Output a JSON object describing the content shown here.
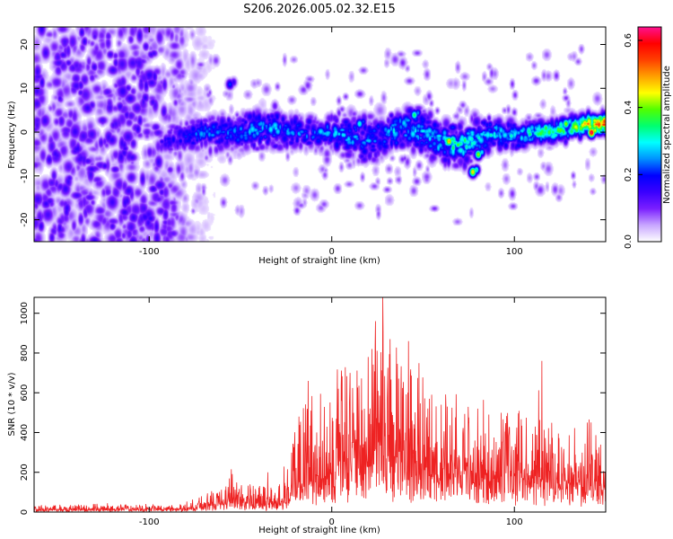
{
  "title": "S206.2026.005.02.32.E15",
  "chart_data": [
    {
      "type": "heatmap",
      "title": "S206.2026.005.02.32.E15",
      "xlabel": "Height of straight line (km)",
      "ylabel": "Frequency (Hz)",
      "xlim": [
        -163,
        150
      ],
      "ylim": [
        -25,
        24
      ],
      "xticks": [
        -100,
        0,
        100
      ],
      "xtick_labels": [
        "-100",
        "0",
        "100"
      ],
      "yticks": [
        20,
        10,
        0,
        -10,
        -20
      ],
      "ytick_labels": [
        "20",
        "10",
        "0",
        "-10",
        "-20"
      ],
      "colorbar": {
        "label": "Normalized spectral amplitude",
        "range": [
          0.0,
          0.64
        ],
        "ticks": [
          0.0,
          0.2,
          0.4,
          0.6
        ],
        "tick_labels": [
          "0.0",
          "0.2",
          "0.4",
          "0.6"
        ],
        "colors": [
          "#ffffff",
          "#c8a6ff",
          "#7a1fff",
          "#3a00ff",
          "#0000ff",
          "#0090ff",
          "#00ffff",
          "#00ff70",
          "#50ff00",
          "#ffff00",
          "#ffa000",
          "#ff4000",
          "#ff0000",
          "#ff1090"
        ]
      },
      "noise_region": {
        "x": [
          -163,
          -80
        ],
        "y": [
          -25,
          24
        ],
        "level": 0.12
      },
      "ridge": {
        "x": [
          -95,
          -80,
          -70,
          -60,
          -50,
          -40,
          -30,
          -20,
          -10,
          0,
          10,
          20,
          30,
          40,
          50,
          60,
          70,
          80,
          90,
          100,
          110,
          120,
          130,
          140,
          150
        ],
        "center_hz": [
          -2,
          -1,
          0,
          0,
          0,
          1,
          1,
          0,
          0,
          0,
          -1,
          -2,
          0,
          1,
          0,
          -2,
          -3,
          -1,
          0,
          -1,
          0,
          0,
          1,
          2,
          2
        ],
        "halfwidth_hz": [
          3,
          5,
          5,
          6,
          6,
          6,
          6,
          5,
          5,
          5,
          6,
          7,
          6,
          6,
          6,
          6,
          6,
          5,
          4,
          4,
          3,
          3,
          3,
          3,
          3
        ],
        "amplitude": [
          0.15,
          0.2,
          0.24,
          0.22,
          0.24,
          0.26,
          0.26,
          0.24,
          0.25,
          0.26,
          0.27,
          0.24,
          0.26,
          0.3,
          0.28,
          0.32,
          0.36,
          0.3,
          0.3,
          0.3,
          0.33,
          0.36,
          0.4,
          0.45,
          0.55
        ]
      },
      "hotspots": [
        {
          "x": -56,
          "y": 11,
          "amp": 0.22
        },
        {
          "x": 64,
          "y": -2,
          "amp": 0.5
        },
        {
          "x": 77,
          "y": -9,
          "amp": 0.48
        },
        {
          "x": 80,
          "y": -5,
          "amp": 0.42
        },
        {
          "x": 117,
          "y": 1,
          "amp": 0.38
        },
        {
          "x": 128,
          "y": 2,
          "amp": 0.42
        },
        {
          "x": 142,
          "y": 0,
          "amp": 0.64
        },
        {
          "x": 146,
          "y": 2,
          "amp": 0.5
        },
        {
          "x": 45,
          "y": 4,
          "amp": 0.36
        },
        {
          "x": 15,
          "y": 2,
          "amp": 0.32
        },
        {
          "x": 2,
          "y": 0,
          "amp": 0.3
        }
      ]
    },
    {
      "type": "line",
      "xlabel": "Height of straight line (km)",
      "ylabel": "SNR (10 * v/v)",
      "xlim": [
        -163,
        150
      ],
      "ylim": [
        0,
        1080
      ],
      "xticks": [
        -100,
        0,
        100
      ],
      "xtick_labels": [
        "-100",
        "0",
        "100"
      ],
      "yticks": [
        0,
        200,
        400,
        600,
        800,
        1000
      ],
      "ytick_labels": [
        "0",
        "200",
        "400",
        "600",
        "800",
        "1000"
      ],
      "line_color": "#ee2222",
      "series": [
        {
          "name": "SNR",
          "envelope": {
            "x": [
              -163,
              -120,
              -90,
              -80,
              -70,
              -60,
              -55,
              -50,
              -40,
              -35,
              -30,
              -25,
              -20,
              -15,
              -10,
              0,
              10,
              15,
              20,
              25,
              28,
              30,
              40,
              50,
              60,
              70,
              80,
              90,
              100,
              110,
              115,
              120,
              130,
              140,
              150
            ],
            "base": [
              10,
              10,
              12,
              12,
              20,
              40,
              55,
              40,
              35,
              30,
              40,
              60,
              90,
              110,
              130,
              160,
              190,
              200,
              220,
              240,
              250,
              240,
              220,
              200,
              190,
              180,
              170,
              160,
              150,
              150,
              150,
              140,
              130,
              120,
              110
            ],
            "peak": [
              40,
              45,
              40,
              55,
              90,
              150,
              210,
              140,
              160,
              200,
              130,
              300,
              500,
              620,
              660,
              700,
              800,
              720,
              810,
              960,
              1080,
              870,
              860,
              700,
              540,
              600,
              520,
              560,
              500,
              510,
              760,
              440,
              440,
              460,
              420
            ]
          },
          "peaks": [
            {
              "x": -55,
              "y": 215
            },
            {
              "x": -35,
              "y": 200
            },
            {
              "x": -18,
              "y": 480
            },
            {
              "x": -13,
              "y": 660
            },
            {
              "x": 10,
              "y": 700
            },
            {
              "x": 20,
              "y": 780
            },
            {
              "x": 22,
              "y": 820
            },
            {
              "x": 24,
              "y": 960
            },
            {
              "x": 28,
              "y": 1080
            },
            {
              "x": 32,
              "y": 870
            },
            {
              "x": 42,
              "y": 860
            },
            {
              "x": 60,
              "y": 540
            },
            {
              "x": 80,
              "y": 520
            },
            {
              "x": 115,
              "y": 760
            },
            {
              "x": 140,
              "y": 450
            }
          ]
        }
      ]
    }
  ]
}
